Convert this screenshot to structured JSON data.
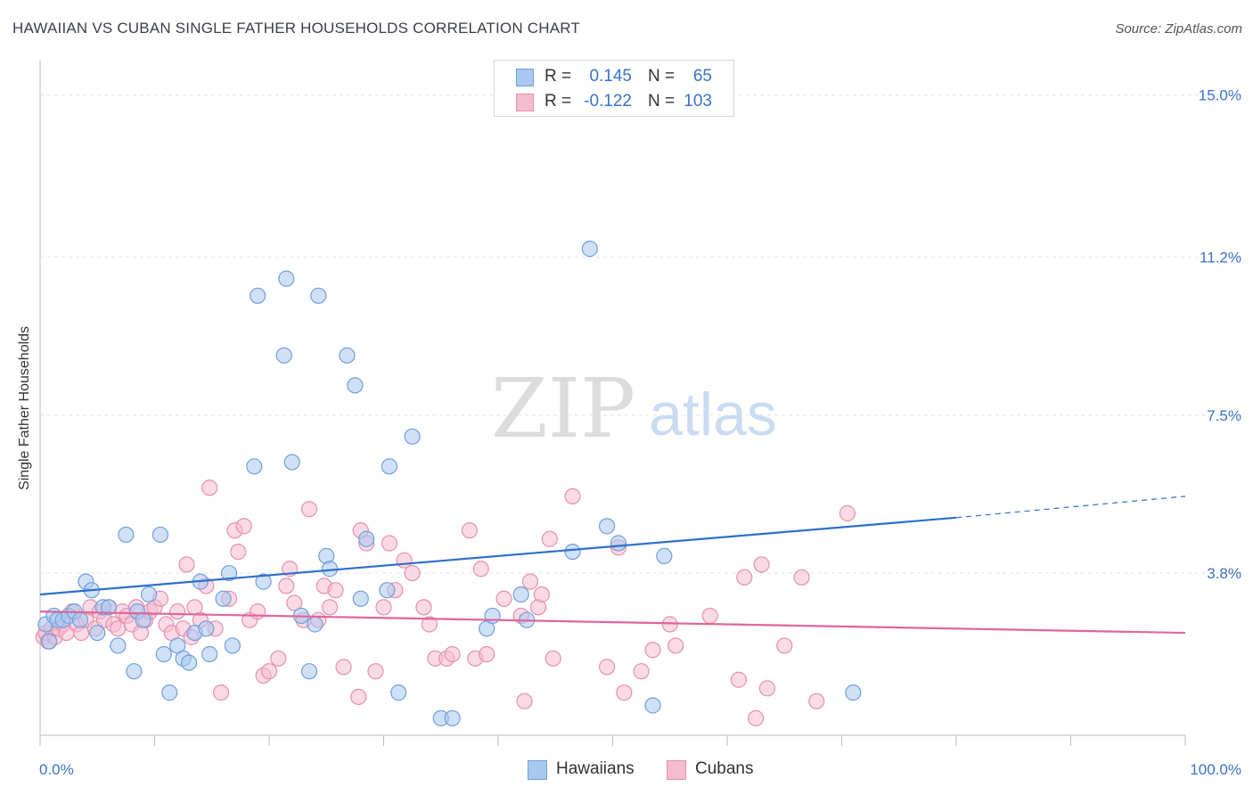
{
  "title": "HAWAIIAN VS CUBAN SINGLE FATHER HOUSEHOLDS CORRELATION CHART",
  "source": "Source: ZipAtlas.com",
  "watermark": {
    "zip": "ZIP",
    "atlas": "atlas"
  },
  "legend": {
    "rows": [
      {
        "r_label": "R =",
        "r_value": "0.145",
        "n_label": "N =",
        "n_value": "65"
      },
      {
        "r_label": "R =",
        "r_value": "-0.122",
        "n_label": "N =",
        "n_value": "103"
      }
    ]
  },
  "bottom_legend": [
    "Hawaiians",
    "Cubans"
  ],
  "colors": {
    "hawaiians_fill": "#a9c8f0",
    "hawaiians_stroke": "#6f9fdc",
    "hawaiians_line": "#2f6fcc",
    "cubans_fill": "#f5bcd0",
    "cubans_stroke": "#e78fae",
    "cubans_line": "#e0669a",
    "axis_label": "#3a73c9",
    "grid": "#e2e2e2"
  },
  "chart_data": {
    "type": "scatter",
    "ylabel": "Single Father Households",
    "xlim": [
      0,
      100
    ],
    "ylim": [
      0,
      15.6
    ],
    "x_tick_labels": [
      "0.0%",
      "100.0%"
    ],
    "y_ticks": [
      3.8,
      7.5,
      11.2,
      15.0
    ],
    "y_tick_labels": [
      "3.8%",
      "7.5%",
      "11.2%",
      "15.0%"
    ],
    "grid": "horizontal dashed",
    "series": [
      {
        "name": "Hawaiians",
        "points": [
          [
            0.5,
            2.6
          ],
          [
            0.8,
            2.2
          ],
          [
            1.2,
            2.8
          ],
          [
            1.5,
            2.7
          ],
          [
            2.0,
            2.7
          ],
          [
            2.5,
            2.8
          ],
          [
            3.0,
            2.9
          ],
          [
            3.5,
            2.7
          ],
          [
            4.0,
            3.6
          ],
          [
            4.5,
            3.4
          ],
          [
            5.0,
            2.4
          ],
          [
            5.5,
            3.0
          ],
          [
            6.0,
            3.0
          ],
          [
            6.8,
            2.1
          ],
          [
            7.5,
            4.7
          ],
          [
            8.2,
            1.5
          ],
          [
            8.5,
            2.9
          ],
          [
            9.0,
            2.7
          ],
          [
            9.5,
            3.3
          ],
          [
            10.5,
            4.7
          ],
          [
            10.8,
            1.9
          ],
          [
            11.3,
            1.0
          ],
          [
            12.0,
            2.1
          ],
          [
            12.5,
            1.8
          ],
          [
            13.0,
            1.7
          ],
          [
            13.5,
            2.4
          ],
          [
            14.0,
            3.6
          ],
          [
            14.5,
            2.5
          ],
          [
            14.8,
            1.9
          ],
          [
            16.0,
            3.2
          ],
          [
            16.5,
            3.8
          ],
          [
            16.8,
            2.1
          ],
          [
            18.7,
            6.3
          ],
          [
            19.0,
            10.3
          ],
          [
            19.5,
            3.6
          ],
          [
            21.3,
            8.9
          ],
          [
            21.5,
            10.7
          ],
          [
            22.0,
            6.4
          ],
          [
            22.8,
            2.8
          ],
          [
            23.5,
            1.5
          ],
          [
            24.0,
            2.6
          ],
          [
            24.3,
            10.3
          ],
          [
            25.0,
            4.2
          ],
          [
            25.3,
            3.9
          ],
          [
            26.8,
            8.9
          ],
          [
            27.5,
            8.2
          ],
          [
            28.0,
            3.2
          ],
          [
            28.5,
            4.6
          ],
          [
            30.3,
            3.4
          ],
          [
            30.5,
            6.3
          ],
          [
            31.3,
            1.0
          ],
          [
            32.5,
            7.0
          ],
          [
            35.0,
            0.4
          ],
          [
            36.0,
            0.4
          ],
          [
            39.0,
            2.5
          ],
          [
            39.5,
            2.8
          ],
          [
            42.0,
            3.3
          ],
          [
            42.5,
            2.7
          ],
          [
            46.5,
            4.3
          ],
          [
            48.0,
            11.4
          ],
          [
            49.5,
            4.9
          ],
          [
            50.5,
            4.5
          ],
          [
            53.5,
            0.7
          ],
          [
            54.5,
            4.2
          ],
          [
            71.0,
            1.0
          ]
        ]
      },
      {
        "name": "Cubans",
        "points": [
          [
            0.3,
            2.3
          ],
          [
            0.5,
            2.4
          ],
          [
            0.7,
            2.2
          ],
          [
            1.0,
            2.5
          ],
          [
            1.3,
            2.3
          ],
          [
            1.6,
            2.5
          ],
          [
            2.0,
            2.6
          ],
          [
            2.3,
            2.4
          ],
          [
            2.8,
            2.9
          ],
          [
            3.2,
            2.6
          ],
          [
            3.6,
            2.4
          ],
          [
            4.0,
            2.7
          ],
          [
            4.4,
            3.0
          ],
          [
            4.8,
            2.5
          ],
          [
            5.2,
            2.9
          ],
          [
            5.6,
            2.7
          ],
          [
            6.0,
            3.0
          ],
          [
            6.4,
            2.6
          ],
          [
            6.8,
            2.5
          ],
          [
            7.2,
            2.9
          ],
          [
            7.6,
            2.8
          ],
          [
            8.0,
            2.6
          ],
          [
            8.4,
            3.0
          ],
          [
            8.8,
            2.4
          ],
          [
            9.2,
            2.7
          ],
          [
            9.6,
            2.9
          ],
          [
            10.0,
            3.0
          ],
          [
            10.5,
            3.2
          ],
          [
            11.0,
            2.6
          ],
          [
            11.5,
            2.4
          ],
          [
            12.0,
            2.9
          ],
          [
            12.5,
            2.5
          ],
          [
            12.8,
            4.0
          ],
          [
            13.2,
            2.3
          ],
          [
            13.5,
            3.0
          ],
          [
            14.0,
            2.7
          ],
          [
            14.5,
            3.5
          ],
          [
            14.8,
            5.8
          ],
          [
            15.3,
            2.5
          ],
          [
            15.8,
            1.0
          ],
          [
            16.5,
            3.2
          ],
          [
            17.0,
            4.8
          ],
          [
            17.3,
            4.3
          ],
          [
            17.8,
            4.9
          ],
          [
            18.3,
            2.7
          ],
          [
            19.0,
            2.9
          ],
          [
            19.5,
            1.4
          ],
          [
            20.0,
            1.5
          ],
          [
            20.8,
            1.8
          ],
          [
            21.5,
            3.5
          ],
          [
            21.8,
            3.9
          ],
          [
            22.2,
            3.1
          ],
          [
            23.0,
            2.7
          ],
          [
            23.5,
            5.3
          ],
          [
            24.3,
            2.7
          ],
          [
            24.8,
            3.5
          ],
          [
            25.3,
            3.0
          ],
          [
            25.8,
            3.4
          ],
          [
            26.5,
            1.6
          ],
          [
            27.8,
            0.9
          ],
          [
            28.0,
            4.8
          ],
          [
            28.5,
            4.5
          ],
          [
            29.3,
            1.5
          ],
          [
            30.0,
            3.0
          ],
          [
            30.5,
            4.5
          ],
          [
            31.0,
            3.4
          ],
          [
            31.8,
            4.1
          ],
          [
            32.5,
            3.8
          ],
          [
            33.5,
            3.0
          ],
          [
            34.0,
            2.6
          ],
          [
            34.5,
            1.8
          ],
          [
            35.5,
            1.8
          ],
          [
            36.0,
            1.9
          ],
          [
            37.5,
            4.8
          ],
          [
            38.0,
            1.8
          ],
          [
            38.5,
            3.9
          ],
          [
            39.0,
            1.9
          ],
          [
            40.5,
            3.2
          ],
          [
            42.0,
            2.8
          ],
          [
            42.3,
            0.8
          ],
          [
            42.8,
            3.6
          ],
          [
            43.5,
            3.0
          ],
          [
            43.8,
            3.3
          ],
          [
            44.5,
            4.6
          ],
          [
            44.8,
            1.8
          ],
          [
            46.5,
            5.6
          ],
          [
            49.5,
            1.6
          ],
          [
            50.5,
            4.4
          ],
          [
            51.0,
            1.0
          ],
          [
            52.5,
            1.5
          ],
          [
            53.5,
            2.0
          ],
          [
            55.0,
            2.6
          ],
          [
            55.5,
            2.1
          ],
          [
            58.5,
            2.8
          ],
          [
            61.0,
            1.3
          ],
          [
            61.5,
            3.7
          ],
          [
            62.5,
            0.4
          ],
          [
            63.0,
            4.0
          ],
          [
            63.5,
            1.1
          ],
          [
            65.0,
            2.1
          ],
          [
            66.5,
            3.7
          ],
          [
            67.8,
            0.8
          ],
          [
            70.5,
            5.2
          ]
        ]
      }
    ],
    "trend_lines": [
      {
        "name": "Hawaiians",
        "x": [
          0,
          80
        ],
        "y": [
          3.3,
          5.1
        ],
        "dashed_extension_to_x": 100,
        "dashed_extension_y": 5.6
      },
      {
        "name": "Cubans",
        "x": [
          0,
          100
        ],
        "y": [
          2.9,
          2.4
        ]
      }
    ]
  }
}
